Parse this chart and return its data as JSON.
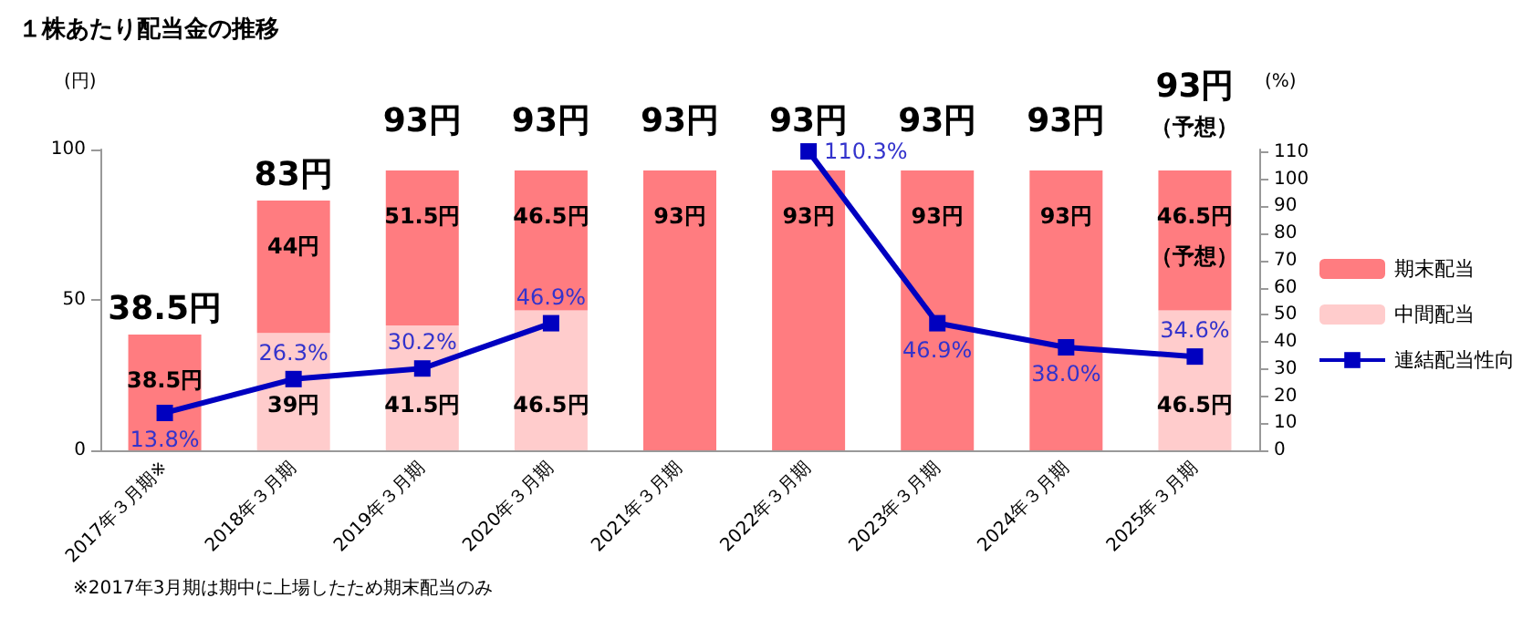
{
  "chart_data": {
    "type": "bar",
    "title": "１株あたり配当金の推移",
    "ylabel": "(円)",
    "y2label": "(%)",
    "categories": [
      "2017年３月期※",
      "2018年３月期",
      "2019年３月期",
      "2020年３月期",
      "2021年３月期",
      "2022年３月期",
      "2023年３月期",
      "2024年３月期",
      "2025年３月期"
    ],
    "stacked": true,
    "series": [
      {
        "name": "中間配当",
        "color": "#ffcccc",
        "values": [
          null,
          39,
          41.5,
          46.5,
          null,
          null,
          null,
          null,
          46.5
        ],
        "value_labels": [
          null,
          "39円",
          "41.5円",
          "46.5円",
          null,
          null,
          null,
          null,
          "46.5円"
        ]
      },
      {
        "name": "期末配当",
        "color": "#ff7c80",
        "values": [
          38.5,
          44,
          51.5,
          46.5,
          93,
          93,
          93,
          93,
          46.5
        ],
        "value_labels": [
          "38.5円",
          "44円",
          "51.5円",
          "46.5円",
          "93円",
          "93円",
          "93円",
          "93円",
          "46.5円（予想）"
        ]
      },
      {
        "name": "連結配当性向",
        "type": "line",
        "axis": "y2",
        "color": "#0000c0",
        "marker": "square",
        "values": [
          13.8,
          26.3,
          30.2,
          46.9,
          null,
          110.3,
          46.9,
          38.0,
          34.6
        ],
        "value_labels": [
          "13.8%",
          "26.3%",
          "30.2%",
          "46.9%",
          null,
          "110.3%",
          "46.9%",
          "38.0%",
          "34.6%"
        ]
      }
    ],
    "totals": [
      "38.5円",
      "83円",
      "93円",
      "93円",
      "93円",
      "93円",
      "93円",
      "93円",
      "93円（予想）"
    ],
    "ylim": [
      0,
      100
    ],
    "yticks": [
      0,
      50,
      100
    ],
    "y2lim": [
      0,
      111
    ],
    "y2ticks": [
      0,
      10,
      20,
      30,
      40,
      50,
      60,
      70,
      80,
      90,
      100,
      110
    ],
    "grid": false,
    "legend": "right",
    "annotations": [
      "※2017年3月期は期中に上場したため期末配当のみ"
    ]
  }
}
